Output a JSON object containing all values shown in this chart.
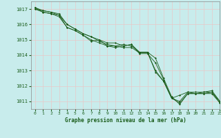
{
  "title": "Graphe pression niveau de la mer (hPa)",
  "bg_color": "#c8ecec",
  "grid_color_v": "#e8c8c8",
  "grid_color_h": "#e8c8c8",
  "line_color": "#1a5c1a",
  "spine_color": "#888888",
  "xlim": [
    -0.5,
    23
  ],
  "ylim": [
    1010.5,
    1017.5
  ],
  "yticks": [
    1011,
    1012,
    1013,
    1014,
    1015,
    1016,
    1017
  ],
  "xticks": [
    0,
    1,
    2,
    3,
    4,
    5,
    6,
    7,
    8,
    9,
    10,
    11,
    12,
    13,
    14,
    15,
    16,
    17,
    18,
    19,
    20,
    21,
    22,
    23
  ],
  "series": [
    [
      1017.1,
      1016.8,
      1016.7,
      1016.6,
      1015.8,
      1015.6,
      1015.3,
      1014.9,
      1015.0,
      1014.6,
      1014.6,
      1014.7,
      1014.6,
      1014.2,
      1014.2,
      1013.8,
      1012.5,
      1011.3,
      1010.8,
      1011.5,
      1011.5,
      1011.5,
      1011.6,
      1011.0
    ],
    [
      1017.0,
      1016.8,
      1016.7,
      1016.5,
      1015.8,
      1015.6,
      1015.3,
      1015.0,
      1014.8,
      1014.6,
      1014.5,
      1014.6,
      1014.7,
      1014.1,
      1014.1,
      1013.5,
      1012.4,
      1011.2,
      1011.4,
      1011.6,
      1011.5,
      1011.5,
      1011.5,
      1010.9
    ],
    [
      1017.0,
      1016.9,
      1016.8,
      1016.6,
      1016.0,
      1015.7,
      1015.4,
      1015.2,
      1014.9,
      1014.7,
      1014.6,
      1014.5,
      1014.5,
      1014.15,
      1014.15,
      1013.0,
      1012.3,
      1011.2,
      1011.0,
      1011.6,
      1011.6,
      1011.6,
      1011.7,
      1011.0
    ],
    [
      1017.1,
      1016.9,
      1016.8,
      1016.7,
      1016.0,
      1015.7,
      1015.4,
      1015.2,
      1015.0,
      1014.8,
      1014.8,
      1014.6,
      1014.7,
      1014.2,
      1014.2,
      1012.9,
      1012.3,
      1011.2,
      1010.9,
      1011.5,
      1011.5,
      1011.6,
      1011.6,
      1010.9
    ]
  ]
}
